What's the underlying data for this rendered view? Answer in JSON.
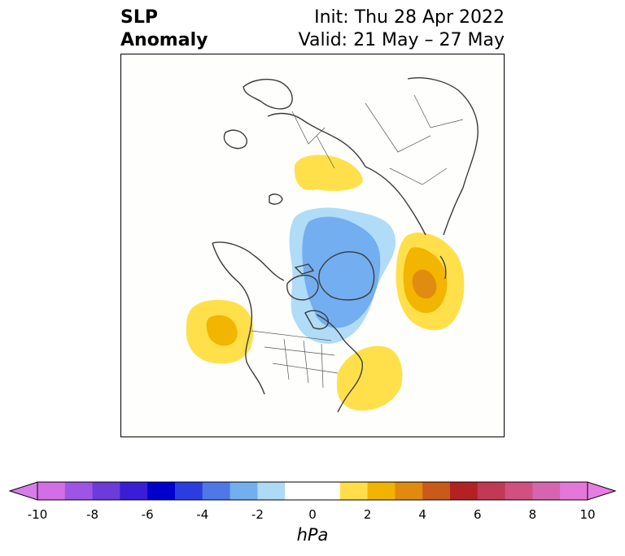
{
  "header": {
    "title_line1": "SLP",
    "title_line2": "Anomaly",
    "init_text": "Init: Thu 28 Apr 2022",
    "valid_text": "Valid: 21 May – 27 May"
  },
  "map": {
    "projection": "polar stereographic (North America / Arctic)",
    "anomaly_regions": [
      {
        "name": "Scandinavia / Baltic high",
        "sign": "positive",
        "max_level_hPa": 1
      },
      {
        "name": "Arctic / Greenland low",
        "sign": "negative",
        "min_level_hPa": -3
      },
      {
        "name": "East Siberia / Okhotsk high",
        "sign": "positive",
        "max_level_hPa": 3
      },
      {
        "name": "NE Pacific high",
        "sign": "positive",
        "max_level_hPa": 2
      },
      {
        "name": "Western Atlantic high",
        "sign": "positive",
        "max_level_hPa": 1
      }
    ]
  },
  "colorbar": {
    "label": "hPa",
    "ticks": [
      "-10",
      "-8",
      "-6",
      "-4",
      "-2",
      "0",
      "2",
      "4",
      "6",
      "8",
      "10"
    ],
    "colors": [
      "#d26ee6",
      "#9d55e3",
      "#6c3bd9",
      "#3a1dd6",
      "#0000cd",
      "#2a3ee0",
      "#4f78e6",
      "#73aeef",
      "#afdaf6",
      "#ffffff",
      "#ffffff",
      "#ffde4a",
      "#f2b300",
      "#e08b10",
      "#c95a1a",
      "#b22222",
      "#c03a55",
      "#d05080",
      "#d665b0",
      "#e477d8"
    ],
    "extend_min_color": "#d77ce8",
    "extend_max_color": "#e87ce0"
  }
}
